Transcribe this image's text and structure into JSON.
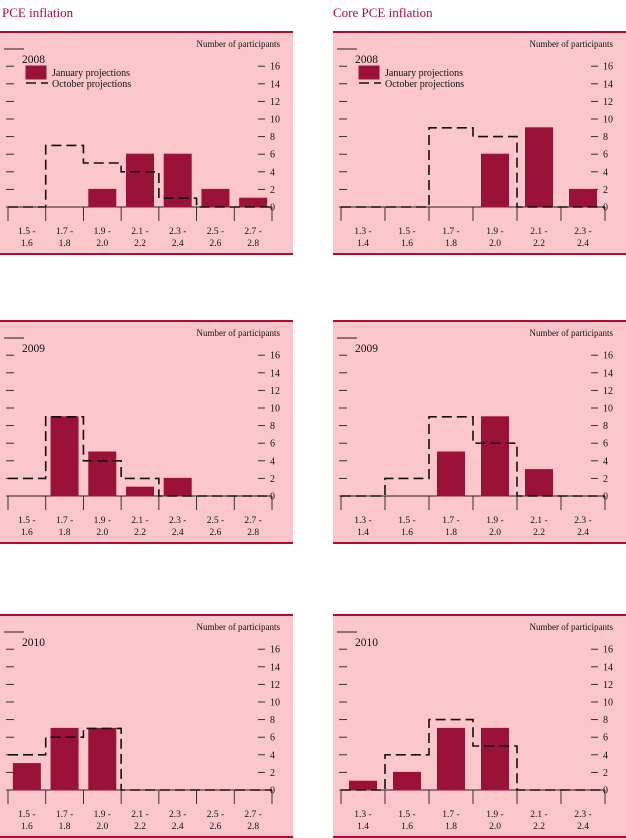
{
  "titles": {
    "left": "PCE inflation",
    "right": "Core PCE inflation"
  },
  "legend": {
    "january": "January projections",
    "october": "October projections"
  },
  "colors": {
    "accent": "#b30838",
    "bar": "#9b1239",
    "panel_bg": "#fcc7cb"
  },
  "chart_data": [
    {
      "id": "pce-2008",
      "type": "bar",
      "year": "2008",
      "header": "Number of participants",
      "legend": true,
      "categories": [
        "1.5 -\n1.6",
        "1.7 -\n1.8",
        "1.9 -\n2.0",
        "2.1 -\n2.2",
        "2.3 -\n2.4",
        "2.5 -\n2.6",
        "2.7 -\n2.8"
      ],
      "series": [
        {
          "name": "January projections",
          "values": [
            0,
            0,
            2,
            6,
            6,
            2,
            1
          ]
        },
        {
          "name": "October projections",
          "values": [
            0,
            7,
            5,
            4,
            1,
            0,
            0
          ]
        }
      ],
      "yticks": [
        0,
        2,
        4,
        6,
        8,
        10,
        12,
        14,
        16
      ],
      "ylim": [
        0,
        16
      ]
    },
    {
      "id": "core-2008",
      "type": "bar",
      "year": "2008",
      "header": "Number of participants",
      "legend": true,
      "categories": [
        "1.3 -\n1.4",
        "1.5 -\n1.6",
        "1.7 -\n1.8",
        "1.9 -\n2.0",
        "2.1 -\n2.2",
        "2.3 -\n2.4"
      ],
      "series": [
        {
          "name": "January projections",
          "values": [
            0,
            0,
            0,
            6,
            9,
            2
          ]
        },
        {
          "name": "October projections",
          "values": [
            0,
            0,
            9,
            8,
            0,
            0
          ]
        }
      ],
      "yticks": [
        0,
        2,
        4,
        6,
        8,
        10,
        12,
        14,
        16
      ],
      "ylim": [
        0,
        16
      ]
    },
    {
      "id": "pce-2009",
      "type": "bar",
      "year": "2009",
      "header": "Number of participants",
      "legend": false,
      "categories": [
        "1.5 -\n1.6",
        "1.7 -\n1.8",
        "1.9 -\n2.0",
        "2.1 -\n2.2",
        "2.3 -\n2.4",
        "2.5 -\n2.6",
        "2.7 -\n2.8"
      ],
      "series": [
        {
          "name": "January projections",
          "values": [
            0,
            9,
            5,
            1,
            2,
            0,
            0
          ]
        },
        {
          "name": "October projections",
          "values": [
            2,
            9,
            4,
            2,
            0,
            0,
            0
          ]
        }
      ],
      "yticks": [
        0,
        2,
        4,
        6,
        8,
        10,
        12,
        14,
        16
      ],
      "ylim": [
        0,
        16
      ]
    },
    {
      "id": "core-2009",
      "type": "bar",
      "year": "2009",
      "header": "Number of participants",
      "legend": false,
      "categories": [
        "1.3 -\n1.4",
        "1.5 -\n1.6",
        "1.7 -\n1.8",
        "1.9 -\n2.0",
        "2.1 -\n2.2",
        "2.3 -\n2.4"
      ],
      "series": [
        {
          "name": "January projections",
          "values": [
            0,
            0,
            5,
            9,
            3,
            0
          ]
        },
        {
          "name": "October projections",
          "values": [
            0,
            2,
            9,
            6,
            0,
            0
          ]
        }
      ],
      "yticks": [
        0,
        2,
        4,
        6,
        8,
        10,
        12,
        14,
        16
      ],
      "ylim": [
        0,
        16
      ]
    },
    {
      "id": "pce-2010",
      "type": "bar",
      "year": "2010",
      "header": "Number of participants",
      "legend": false,
      "categories": [
        "1.5 -\n1.6",
        "1.7 -\n1.8",
        "1.9 -\n2.0",
        "2.1 -\n2.2",
        "2.3 -\n2.4",
        "2.5 -\n2.6",
        "2.7 -\n2.8"
      ],
      "series": [
        {
          "name": "January projections",
          "values": [
            3,
            7,
            7,
            0,
            0,
            0,
            0
          ]
        },
        {
          "name": "October projections",
          "values": [
            4,
            6,
            7,
            0,
            0,
            0,
            0
          ]
        }
      ],
      "yticks": [
        0,
        2,
        4,
        6,
        8,
        10,
        12,
        14,
        16
      ],
      "ylim": [
        0,
        16
      ]
    },
    {
      "id": "core-2010",
      "type": "bar",
      "year": "2010",
      "header": "Number of participants",
      "legend": false,
      "categories": [
        "1.3 -\n1.4",
        "1.5 -\n1.6",
        "1.7 -\n1.8",
        "1.9 -\n2.0",
        "2.1 -\n2.2",
        "2.3 -\n2.4"
      ],
      "series": [
        {
          "name": "January projections",
          "values": [
            1,
            2,
            7,
            7,
            0,
            0
          ]
        },
        {
          "name": "October projections",
          "values": [
            0,
            4,
            8,
            5,
            0,
            0
          ]
        }
      ],
      "yticks": [
        0,
        2,
        4,
        6,
        8,
        10,
        12,
        14,
        16
      ],
      "ylim": [
        0,
        16
      ]
    }
  ]
}
